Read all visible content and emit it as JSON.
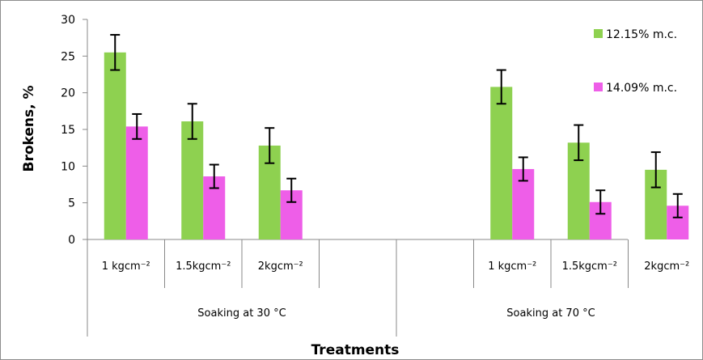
{
  "chart_data": {
    "type": "bar",
    "title": "",
    "xlabel": "Treatments",
    "ylabel": "Brokens, %",
    "ylim": [
      0,
      30
    ],
    "yticks": [
      0,
      5,
      10,
      15,
      20,
      25,
      30
    ],
    "grid": false,
    "legend_position": "top-right",
    "groups": [
      {
        "label": "Soaking at 30 °C",
        "categories": [
          "1 kgcm⁻²",
          "1.5kgcm⁻²",
          "2kgcm⁻²",
          ""
        ]
      },
      {
        "label": "Soaking at 70 °C",
        "categories": [
          "",
          "1 kgcm⁻²",
          "1.5kgcm⁻²",
          "2kgcm⁻²"
        ]
      }
    ],
    "categories": [
      "1 kgcm⁻²",
      "1.5kgcm⁻²",
      "2kgcm⁻²",
      "",
      "",
      "1 kgcm⁻²",
      "1.5kgcm⁻²",
      "2kgcm⁻²"
    ],
    "series": [
      {
        "name": "12.15% m.c.",
        "color": "#8ed150",
        "values": [
          25.5,
          16.1,
          12.8,
          null,
          null,
          20.8,
          13.2,
          9.5
        ],
        "errors": [
          2.4,
          2.4,
          2.4,
          null,
          null,
          2.3,
          2.4,
          2.4
        ]
      },
      {
        "name": "14.09% m.c.",
        "color": "#ee5ee8",
        "values": [
          15.4,
          8.6,
          6.7,
          null,
          null,
          9.6,
          5.1,
          4.6
        ],
        "errors": [
          1.7,
          1.6,
          1.6,
          null,
          null,
          1.6,
          1.6,
          1.6
        ]
      }
    ]
  }
}
